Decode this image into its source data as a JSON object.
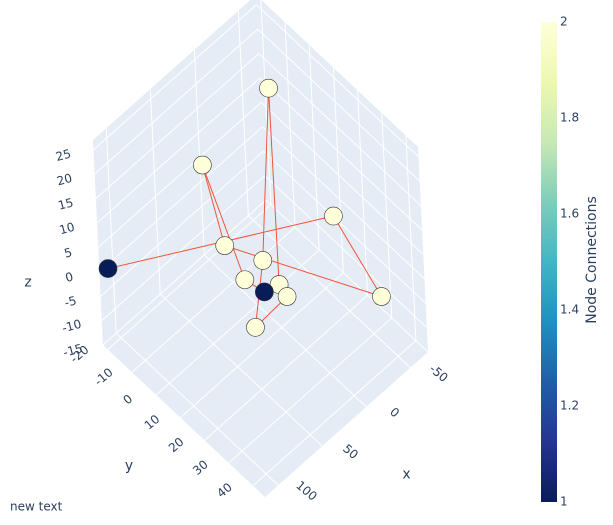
{
  "chart_data": {
    "type": "scatter3d",
    "x": [
      -31,
      35,
      -27,
      108,
      20,
      7,
      15,
      -2,
      17,
      -5,
      -60,
      21
    ],
    "y": [
      -3,
      -7,
      24,
      -21,
      -5,
      6,
      1,
      9,
      10,
      11,
      30,
      7
    ],
    "z": [
      23,
      16,
      10,
      0,
      -2,
      -2,
      -7,
      -7,
      -5,
      -9,
      -9,
      -13
    ],
    "values": [
      2,
      2,
      2,
      1,
      2,
      2,
      2,
      2,
      1,
      2,
      2,
      2
    ],
    "edges": [
      [
        3,
        2
      ],
      [
        2,
        10
      ],
      [
        10,
        4
      ],
      [
        4,
        1
      ],
      [
        1,
        6
      ],
      [
        6,
        8
      ],
      [
        0,
        5
      ],
      [
        0,
        7
      ],
      [
        5,
        11
      ],
      [
        7,
        9
      ],
      [
        9,
        11
      ]
    ],
    "edge_color": "#ef553b",
    "xlim": [
      -70,
      115
    ],
    "ylim": [
      -22,
      45
    ],
    "zlim": [
      -15,
      27
    ],
    "xticks": [
      -50,
      0,
      50,
      100
    ],
    "yticks": [
      -20,
      -10,
      0,
      10,
      20,
      30,
      40
    ],
    "zticks": [
      -15,
      -10,
      -5,
      0,
      5,
      10,
      15,
      20,
      25
    ],
    "xlabel": "x",
    "ylabel": "y",
    "zlabel": "z",
    "colorbar_title": "Node Connections",
    "clim": [
      1,
      2
    ],
    "colorbar_ticks": [
      1,
      1.2,
      1.4,
      1.6,
      1.8,
      2
    ],
    "colorscale": [
      "#081d58",
      "#253494",
      "#225ea8",
      "#1d91c0",
      "#41b6c4",
      "#7fcdbb",
      "#c7e9b4",
      "#edf8b1",
      "#ffffd9"
    ],
    "annotation": "new text"
  }
}
